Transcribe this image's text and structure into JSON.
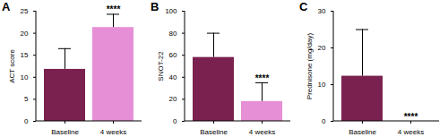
{
  "chart_data": [
    {
      "type": "bar",
      "title": "A",
      "y_label": "ACT score",
      "categories": [
        "Baseline",
        "4 weeks"
      ],
      "values": [
        11.8,
        21.3
      ],
      "errors": [
        4.7,
        3.0
      ],
      "colors": [
        "#7b2150",
        "#e68fd6"
      ],
      "ylim": [
        0,
        25
      ],
      "yticks": [
        0,
        5,
        10,
        15,
        20,
        25
      ],
      "annotations": [
        {
          "category": "4 weeks",
          "text": "****"
        }
      ]
    },
    {
      "type": "bar",
      "title": "B",
      "y_label": "SNOT-22",
      "categories": [
        "Baseline",
        "4 weeks"
      ],
      "values": [
        58,
        18
      ],
      "errors": [
        22,
        17
      ],
      "colors": [
        "#7b2150",
        "#e68fd6"
      ],
      "ylim": [
        0,
        100
      ],
      "yticks": [
        0,
        20,
        40,
        60,
        80,
        100
      ],
      "annotations": [
        {
          "category": "4 weeks",
          "text": "****"
        }
      ]
    },
    {
      "type": "bar",
      "title": "C",
      "y_label": "Prednisone (mg/day)",
      "categories": [
        "Baseline",
        "4 weeks"
      ],
      "values": [
        12.3,
        0
      ],
      "errors": [
        12.7,
        0
      ],
      "colors": [
        "#7b2150",
        "#e68fd6"
      ],
      "ylim": [
        0,
        30
      ],
      "yticks": [
        0,
        10,
        20,
        30
      ],
      "annotations": [
        {
          "category": "4 weeks",
          "text": "****"
        }
      ]
    }
  ]
}
